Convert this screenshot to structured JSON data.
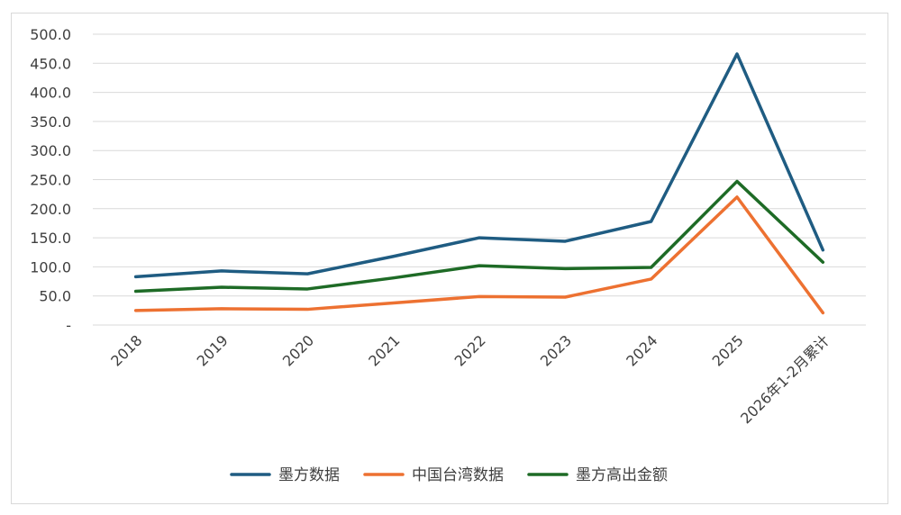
{
  "chart_data": {
    "type": "line",
    "title": "",
    "xlabel": "",
    "ylabel": "",
    "categories": [
      "2018",
      "2019",
      "2020",
      "2021",
      "2022",
      "2023",
      "2024",
      "2025",
      "2026年1-2月累计"
    ],
    "y_ticks": [
      "-",
      "50.0",
      "100.0",
      "150.0",
      "200.0",
      "250.0",
      "300.0",
      "350.0",
      "400.0",
      "450.0",
      "500.0"
    ],
    "ylim": [
      0,
      500
    ],
    "grid": true,
    "legend_position": "bottom",
    "series": [
      {
        "name": "墨方数据",
        "color": "#1f5c82",
        "values": [
          83,
          93,
          88,
          118,
          150,
          144,
          178,
          466,
          129
        ]
      },
      {
        "name": "中国台湾数据",
        "color": "#ed7131",
        "values": [
          25,
          28,
          27,
          38,
          49,
          48,
          79,
          220,
          21
        ]
      },
      {
        "name": "墨方高出金额",
        "color": "#1e6b26",
        "values": [
          58,
          65,
          62,
          81,
          102,
          97,
          99,
          247,
          108
        ]
      }
    ]
  }
}
